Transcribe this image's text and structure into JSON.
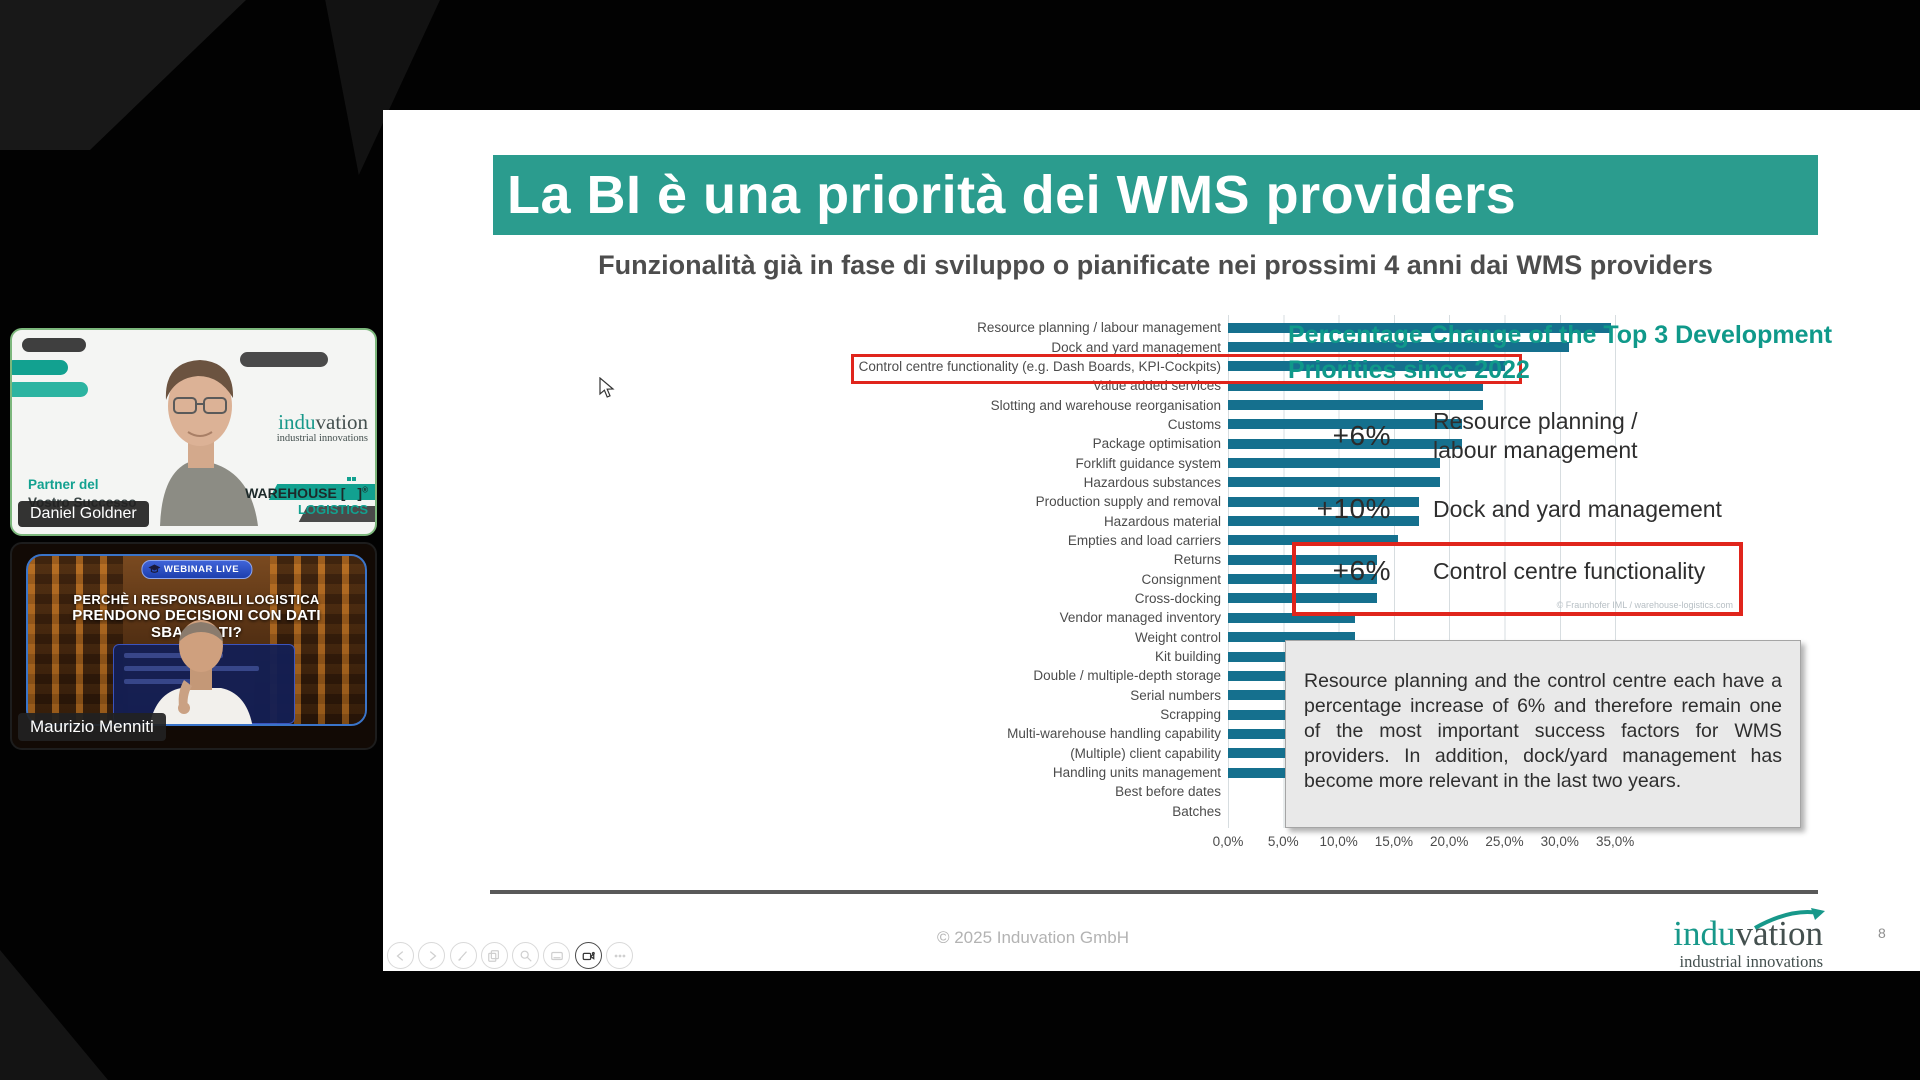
{
  "slide": {
    "title": "La BI è una priorità dei WMS providers",
    "subtitle": "Funzionalità già in fase di sviluppo o pianificate nei prossimi 4 anni dai WMS providers",
    "footer_copyright": "© 2025 Induvation GmbH",
    "page_number": "8",
    "chart_watermark": "© Fraunhofer IML / warehouse-logistics.com",
    "logo": {
      "part1": "indu",
      "part2": "vation",
      "tagline": "industrial innovations"
    }
  },
  "chart_data": {
    "type": "bar",
    "orientation": "horizontal",
    "title": "Funzionalità già in fase di sviluppo o pianificate nei prossimi 4 anni dai WMS providers",
    "categories": [
      "Resource planning / labour management",
      "Dock and yard management",
      "Control centre functionality (e.g. Dash Boards, KPI-Cockpits)",
      "Value added services",
      "Slotting and warehouse reorganisation",
      "Customs",
      "Package optimisation",
      "Forklift guidance system",
      "Hazardous substances",
      "Production supply and removal",
      "Hazardous material",
      "Empties and load carriers",
      "Returns",
      "Consignment",
      "Cross-docking",
      "Vendor managed inventory",
      "Weight control",
      "Kit building",
      "Double / multiple-depth storage",
      "Serial numbers",
      "Scrapping",
      "Multi-warehouse handling capability",
      "(Multiple) client capability",
      "Handling units management",
      "Best before dates",
      "Batches"
    ],
    "values": [
      34.6,
      30.8,
      25.0,
      23.1,
      23.1,
      21.2,
      21.2,
      19.2,
      19.2,
      17.3,
      17.3,
      15.4,
      13.5,
      13.5,
      13.5,
      11.5,
      11.5,
      9.6,
      9.6,
      7.7,
      5.8,
      5.8,
      5.8,
      5.8,
      0,
      0
    ],
    "x_ticks": [
      "0,0%",
      "5,0%",
      "10,0%",
      "15,0%",
      "20,0%",
      "25,0%",
      "30,0%",
      "35,0%"
    ],
    "xlim": [
      0,
      35
    ],
    "grid": true,
    "bar_color": "#15708e",
    "highlight_index": 2,
    "highlight_color": "#e0251c"
  },
  "right_panel": {
    "heading": "Percentage Change of the Top 3 Development Priorities since 2022",
    "items": [
      {
        "change": "+6%",
        "label": "Resource planning /\nlabour management",
        "highlighted": false
      },
      {
        "change": "+10%",
        "label": "Dock and yard management",
        "highlighted": false
      },
      {
        "change": "+6%",
        "label": "Control centre functionality",
        "highlighted": true
      }
    ],
    "highlight_watermark": "© Fraunhofer IML / warehouse-logistics.com",
    "note": "Resource planning and the control centre each have a percentage increase of 6% and therefore remain one of the most important success factors for WMS providers. In addition, dock/yard management has become more relevant in the last two years."
  },
  "participants": [
    {
      "name": "Daniel Goldner",
      "overlay": {
        "brand_part1": "indu",
        "brand_part2": "vation",
        "brand_tagline": "industrial innovations",
        "warehouse_word": "WAREHOUSE",
        "warehouse_reg": "®",
        "warehouse_sub": "LOGISTICS",
        "partner_line1": "Partner del",
        "partner_line2": "Vostro Successo"
      }
    },
    {
      "name": "Maurizio Menniti",
      "overlay": {
        "badge": "WEBINAR LIVE",
        "headline_line1": "PERCHÈ I RESPONSABILI LOGISTICA",
        "headline_line2": "PRENDONO DECISIONI CON DATI SBAGLIATI?"
      }
    }
  ],
  "toolbar": {
    "buttons": [
      {
        "name": "previous-slide-button",
        "icon": "chevron-left-icon",
        "active": false
      },
      {
        "name": "next-slide-button",
        "icon": "chevron-right-icon",
        "active": false
      },
      {
        "name": "pen-tool-button",
        "icon": "pen-icon",
        "active": false
      },
      {
        "name": "slides-overview-button",
        "icon": "copy-icon",
        "active": false
      },
      {
        "name": "zoom-button",
        "icon": "magnifier-icon",
        "active": false
      },
      {
        "name": "notes-button",
        "icon": "notes-icon",
        "active": false
      },
      {
        "name": "camera-button",
        "icon": "camera-icon",
        "active": true
      },
      {
        "name": "more-button",
        "icon": "ellipsis-icon",
        "active": false
      }
    ]
  }
}
